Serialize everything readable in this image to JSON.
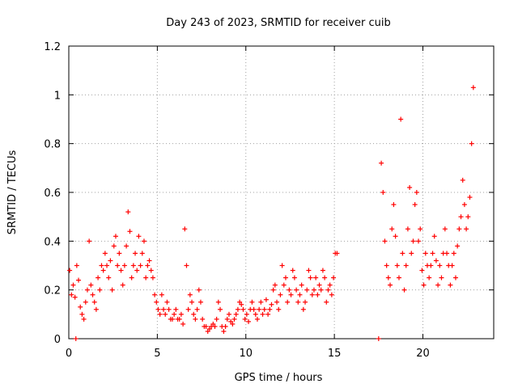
{
  "chart_data": {
    "type": "scatter",
    "title": "Day 243 of 2023, SRMTID for receiver cuib",
    "xlabel": "GPS time / hours",
    "ylabel": "SRMTID / TECUs",
    "xlim": [
      0,
      24
    ],
    "ylim": [
      0,
      1.2
    ],
    "grid": true,
    "legend": "none",
    "marker": "+",
    "series_color": "#ff0000",
    "x_ticks": [
      0,
      5,
      10,
      15,
      20
    ],
    "x_tick_labels": [
      "0",
      "5",
      "10",
      "15",
      "20"
    ],
    "y_ticks": [
      0,
      0.2,
      0.4,
      0.6,
      0.8,
      1.0,
      1.2
    ],
    "y_tick_labels": [
      "0",
      "0.2",
      "0.4",
      "0.6",
      "0.8",
      "1",
      "1.2"
    ],
    "series": [
      {
        "name": "SRMTID",
        "x": [
          0.05,
          0.15,
          0.25,
          0.35,
          0.45,
          0.55,
          0.65,
          0.75,
          0.85,
          0.95,
          1.05,
          1.15,
          1.25,
          1.35,
          1.45,
          1.55,
          1.65,
          1.75,
          1.85,
          1.95,
          2.05,
          2.15,
          2.25,
          2.35,
          2.45,
          2.55,
          2.65,
          2.75,
          2.85,
          2.95,
          3.05,
          3.15,
          3.25,
          3.35,
          3.45,
          3.55,
          3.65,
          3.75,
          3.85,
          3.95,
          4.05,
          4.15,
          4.25,
          4.35,
          4.45,
          4.55,
          4.65,
          4.75,
          4.85,
          4.95,
          5.05,
          5.15,
          5.25,
          5.35,
          5.45,
          5.55,
          5.65,
          5.75,
          5.85,
          5.95,
          6.05,
          6.15,
          6.25,
          6.35,
          6.45,
          6.55,
          6.65,
          6.75,
          6.85,
          6.95,
          7.05,
          7.15,
          7.25,
          7.35,
          7.45,
          7.55,
          7.65,
          7.75,
          7.85,
          7.95,
          8.05,
          8.15,
          8.25,
          8.35,
          8.45,
          8.55,
          8.65,
          8.75,
          8.85,
          8.95,
          9.05,
          9.15,
          9.25,
          9.35,
          9.45,
          9.55,
          9.65,
          9.75,
          9.85,
          9.95,
          10.05,
          10.15,
          10.25,
          10.35,
          10.45,
          10.55,
          10.65,
          10.75,
          10.85,
          10.95,
          11.05,
          11.15,
          11.25,
          11.35,
          11.45,
          11.55,
          11.65,
          11.75,
          11.85,
          11.95,
          12.05,
          12.15,
          12.25,
          12.35,
          12.45,
          12.55,
          12.65,
          12.75,
          12.85,
          12.95,
          13.05,
          13.15,
          13.25,
          13.35,
          13.45,
          13.55,
          13.65,
          13.75,
          13.85,
          13.95,
          14.05,
          14.15,
          14.25,
          14.35,
          14.45,
          14.55,
          14.65,
          14.75,
          14.85,
          14.95,
          15.05,
          15.15,
          17.65,
          17.75,
          17.85,
          17.95,
          18.05,
          18.15,
          18.25,
          18.35,
          18.45,
          18.55,
          18.65,
          18.75,
          18.85,
          18.95,
          19.05,
          19.15,
          19.25,
          19.35,
          19.45,
          19.55,
          19.65,
          19.75,
          19.85,
          19.95,
          20.05,
          20.15,
          20.25,
          20.35,
          20.45,
          20.55,
          20.65,
          20.75,
          20.85,
          20.95,
          21.05,
          21.15,
          21.25,
          21.35,
          21.45,
          21.55,
          21.65,
          21.75,
          21.85,
          21.95,
          22.05,
          22.15,
          22.25,
          22.35,
          22.45,
          22.55,
          22.65,
          22.75,
          22.85,
          0.4,
          17.5
        ],
        "y": [
          0.28,
          0.18,
          0.22,
          0.17,
          0.3,
          0.24,
          0.13,
          0.1,
          0.08,
          0.15,
          0.2,
          0.4,
          0.22,
          0.18,
          0.15,
          0.12,
          0.25,
          0.2,
          0.3,
          0.28,
          0.35,
          0.3,
          0.25,
          0.32,
          0.2,
          0.38,
          0.42,
          0.3,
          0.35,
          0.28,
          0.22,
          0.3,
          0.38,
          0.52,
          0.44,
          0.25,
          0.3,
          0.35,
          0.28,
          0.42,
          0.3,
          0.35,
          0.4,
          0.25,
          0.3,
          0.32,
          0.28,
          0.25,
          0.18,
          0.15,
          0.12,
          0.1,
          0.18,
          0.12,
          0.1,
          0.15,
          0.12,
          0.08,
          0.08,
          0.1,
          0.12,
          0.08,
          0.08,
          0.1,
          0.06,
          0.45,
          0.3,
          0.12,
          0.18,
          0.15,
          0.1,
          0.08,
          0.12,
          0.2,
          0.15,
          0.08,
          0.05,
          0.05,
          0.03,
          0.04,
          0.05,
          0.06,
          0.05,
          0.08,
          0.15,
          0.12,
          0.05,
          0.03,
          0.05,
          0.08,
          0.1,
          0.07,
          0.06,
          0.08,
          0.1,
          0.12,
          0.15,
          0.14,
          0.12,
          0.08,
          0.1,
          0.07,
          0.12,
          0.15,
          0.12,
          0.1,
          0.08,
          0.12,
          0.15,
          0.1,
          0.12,
          0.16,
          0.1,
          0.12,
          0.14,
          0.2,
          0.22,
          0.15,
          0.12,
          0.18,
          0.3,
          0.22,
          0.25,
          0.15,
          0.2,
          0.18,
          0.28,
          0.25,
          0.2,
          0.15,
          0.18,
          0.22,
          0.12,
          0.15,
          0.2,
          0.28,
          0.25,
          0.18,
          0.2,
          0.25,
          0.18,
          0.22,
          0.2,
          0.28,
          0.25,
          0.15,
          0.2,
          0.22,
          0.18,
          0.25,
          0.35,
          0.35,
          0.72,
          0.6,
          0.4,
          0.3,
          0.25,
          0.22,
          0.45,
          0.55,
          0.42,
          0.3,
          0.25,
          0.9,
          0.35,
          0.2,
          0.3,
          0.45,
          0.62,
          0.35,
          0.4,
          0.55,
          0.6,
          0.4,
          0.45,
          0.28,
          0.22,
          0.35,
          0.3,
          0.25,
          0.3,
          0.35,
          0.42,
          0.32,
          0.22,
          0.3,
          0.25,
          0.35,
          0.45,
          0.35,
          0.3,
          0.22,
          0.3,
          0.35,
          0.25,
          0.38,
          0.45,
          0.5,
          0.65,
          0.55,
          0.45,
          0.5,
          0.58,
          0.8,
          1.03,
          0,
          0
        ]
      }
    ]
  }
}
